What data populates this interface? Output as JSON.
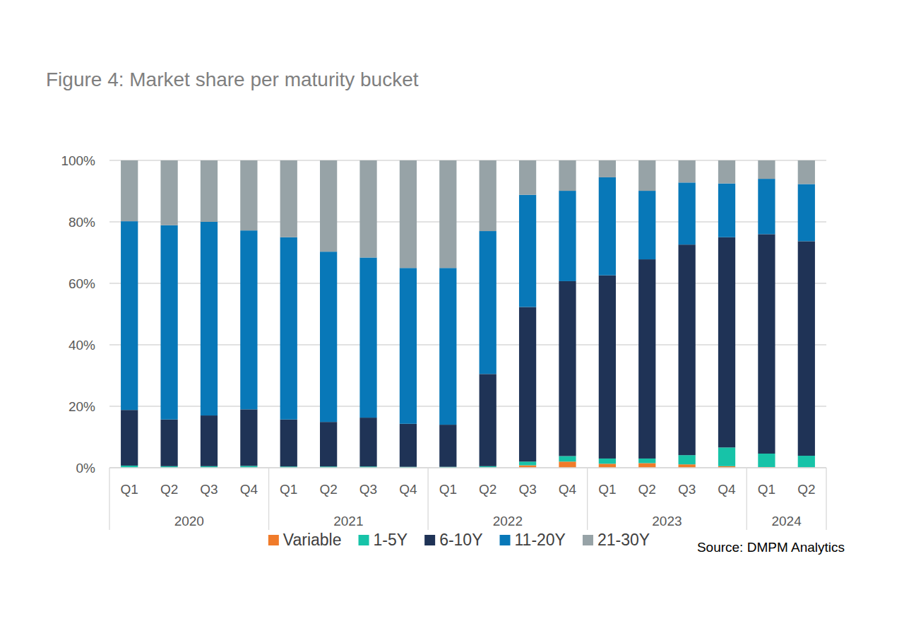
{
  "chart_data": {
    "type": "bar",
    "title": "Figure 4: Market share per maturity bucket",
    "stacked": true,
    "grid": true,
    "legend": "bottom",
    "categories": [
      "Q1",
      "Q2",
      "Q3",
      "Q4",
      "Q1",
      "Q2",
      "Q3",
      "Q4",
      "Q1",
      "Q2",
      "Q3",
      "Q4",
      "Q1",
      "Q2",
      "Q3",
      "Q4",
      "Q1",
      "Q2"
    ],
    "x_groups": [
      {
        "label": "2020",
        "count": 4
      },
      {
        "label": "2021",
        "count": 4
      },
      {
        "label": "2022",
        "count": 4
      },
      {
        "label": "2023",
        "count": 4
      },
      {
        "label": "2024",
        "count": 2
      }
    ],
    "ylim": [
      0,
      100
    ],
    "yticks": [
      {
        "value": 0,
        "label": "0%"
      },
      {
        "value": 20,
        "label": "20%"
      },
      {
        "value": 40,
        "label": "40%"
      },
      {
        "value": 60,
        "label": "60%"
      },
      {
        "value": 80,
        "label": "80%"
      },
      {
        "value": 100,
        "label": "100%"
      }
    ],
    "series": [
      {
        "name": "Variable",
        "color": "#f07b2a",
        "values": [
          0,
          0,
          0,
          0,
          0,
          0,
          0,
          0,
          0,
          0,
          0.8,
          2.0,
          1.3,
          1.5,
          1.1,
          0.5,
          0.2,
          0.1
        ]
      },
      {
        "name": "1-5Y",
        "color": "#17c3a8",
        "values": [
          0.7,
          0.5,
          0.5,
          0.6,
          0.4,
          0.4,
          0.4,
          0.3,
          0.3,
          0.5,
          1.2,
          1.8,
          1.7,
          1.5,
          3.0,
          6.1,
          4.4,
          3.8
        ]
      },
      {
        "name": "6-10Y",
        "color": "#1f3356",
        "values": [
          18.1,
          15.2,
          16.5,
          18.4,
          15.3,
          14.5,
          15.9,
          14.0,
          13.7,
          30.0,
          50.3,
          56.9,
          59.6,
          64.8,
          68.5,
          68.4,
          71.4,
          69.8
        ]
      },
      {
        "name": "11-20Y",
        "color": "#0878b8",
        "values": [
          61.4,
          63.2,
          63.0,
          58.2,
          59.3,
          55.4,
          52.1,
          50.7,
          51.0,
          46.5,
          36.5,
          29.4,
          31.9,
          22.3,
          20.2,
          17.5,
          18.0,
          18.6
        ]
      },
      {
        "name": "21-30Y",
        "color": "#97a3a7",
        "values": [
          19.8,
          21.1,
          20.0,
          22.8,
          25.0,
          29.7,
          31.6,
          35.0,
          35.0,
          23.0,
          11.2,
          9.9,
          5.5,
          9.9,
          7.2,
          7.5,
          6.0,
          7.7
        ]
      }
    ],
    "annotations": [
      "Source: DMPM Analytics"
    ]
  }
}
